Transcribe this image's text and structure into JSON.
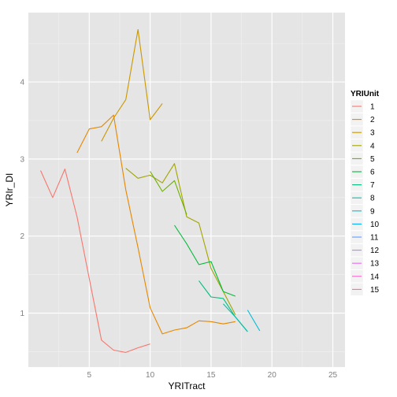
{
  "chart_data": {
    "type": "line",
    "xlabel": "YRITract",
    "ylabel": "YRIr_DI",
    "xlim": [
      0,
      26
    ],
    "ylim": [
      0.3,
      4.9
    ],
    "x_ticks": [
      5,
      10,
      15,
      20,
      25
    ],
    "y_ticks": [
      1,
      2,
      3,
      4
    ],
    "grid": true,
    "legend": {
      "title": "YRIUnit",
      "placement": "right",
      "entries": [
        "1",
        "2",
        "3",
        "4",
        "5",
        "6",
        "7",
        "8",
        "9",
        "10",
        "11",
        "12",
        "13",
        "14",
        "15"
      ]
    },
    "colors": {
      "1": "#F8766D",
      "2": "#E58700",
      "3": "#C99800",
      "4": "#A3A500",
      "5": "#6BB100",
      "6": "#00BA38",
      "7": "#00BF7D",
      "8": "#00C0AF",
      "9": "#00BCD8",
      "10": "#00B0F6",
      "11": "#619CFF",
      "12": "#B983FF",
      "13": "#E76BF3",
      "14": "#FD61D1",
      "15": "#FF67A4"
    },
    "series": [
      {
        "name": "1",
        "x": [
          1,
          2,
          3,
          4,
          5,
          6,
          7,
          8,
          9,
          10
        ],
        "y": [
          2.85,
          2.5,
          2.87,
          2.25,
          1.45,
          0.65,
          0.52,
          0.49,
          0.55,
          0.6
        ]
      },
      {
        "name": "2",
        "x": [
          4,
          5,
          6,
          7,
          8,
          9,
          10,
          11,
          12,
          13,
          14,
          15,
          16,
          17
        ],
        "y": [
          3.08,
          3.39,
          3.42,
          3.57,
          2.6,
          1.85,
          1.07,
          0.73,
          0.78,
          0.81,
          0.9,
          0.89,
          0.86,
          0.89
        ]
      },
      {
        "name": "3",
        "x": [
          6,
          7,
          8,
          9,
          10,
          11
        ],
        "y": [
          3.23,
          3.53,
          3.77,
          4.68,
          3.51,
          3.72
        ]
      },
      {
        "name": "4",
        "x": [
          8,
          9,
          10,
          11,
          12,
          13,
          14,
          15,
          16,
          17
        ],
        "y": [
          2.88,
          2.75,
          2.79,
          2.69,
          2.94,
          2.25,
          2.17,
          1.58,
          1.28,
          0.98
        ]
      },
      {
        "name": "5",
        "x": [
          10,
          11,
          12,
          13
        ],
        "y": [
          2.84,
          2.58,
          2.72,
          2.28
        ]
      },
      {
        "name": "6",
        "x": [
          12,
          13,
          14,
          15,
          16,
          17
        ],
        "y": [
          2.14,
          1.9,
          1.63,
          1.67,
          1.28,
          1.22
        ]
      },
      {
        "name": "7",
        "x": [
          14,
          15,
          16,
          17,
          18
        ],
        "y": [
          1.42,
          1.21,
          1.19,
          0.95,
          0.76
        ]
      },
      {
        "name": "8",
        "x": [
          16,
          17,
          18
        ],
        "y": [
          1.12,
          0.95,
          0.76
        ]
      },
      {
        "name": "9",
        "x": [
          18,
          19
        ],
        "y": [
          1.04,
          0.77
        ]
      }
    ]
  }
}
